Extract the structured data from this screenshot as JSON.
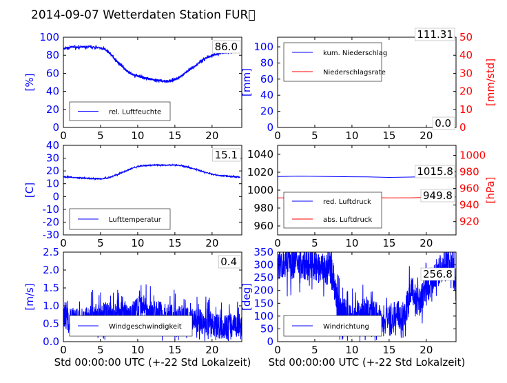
{
  "figure": {
    "title": "2014-09-07 Wetterdaten Station FUR\u0000",
    "xlabel": "Std 00:00:00 UTC (+-22 Std Lokalzeit)"
  },
  "chart_data": [
    {
      "type": "line",
      "xlim": [
        0,
        24
      ],
      "ylim": [
        0,
        100
      ],
      "ylabel": "[%]",
      "y_tick_color": "#0000ff",
      "xticks": [
        0,
        5,
        10,
        15,
        20
      ],
      "yticks": [
        0,
        20,
        40,
        60,
        80,
        100
      ],
      "grid": false,
      "legend": "lower-left",
      "last_value": "86.0",
      "series": [
        {
          "name": "rel. Luftfeuchte",
          "color": "#0000ff",
          "axis": "left",
          "noise": 1.2,
          "x": [
            0,
            0.5,
            1,
            2,
            3,
            4,
            5,
            5.5,
            6,
            6.5,
            7,
            7.5,
            8,
            8.5,
            9,
            9.5,
            10,
            10.5,
            11,
            11.5,
            12,
            12.5,
            13,
            13.5,
            14,
            14.5,
            15,
            15.5,
            16,
            16.5,
            17,
            17.5,
            18,
            18.5,
            19,
            19.5,
            20,
            21,
            22,
            23,
            23.8
          ],
          "y": [
            87,
            88,
            89,
            89,
            89,
            89,
            88,
            87,
            84,
            80,
            75,
            71,
            67,
            63,
            60,
            58,
            57,
            56,
            55,
            54,
            53,
            52,
            52,
            51,
            51,
            52,
            53,
            55,
            58,
            61,
            64,
            67,
            70,
            73,
            76,
            78,
            80,
            82,
            83,
            85,
            86
          ]
        }
      ]
    },
    {
      "type": "line",
      "xlim": [
        0,
        24
      ],
      "ylim": [
        0,
        112
      ],
      "ylabel": "[mm]",
      "y_tick_color": "#0000ff",
      "y2lim": [
        0,
        50
      ],
      "y2label": "[mm/std]",
      "y2_tick_color": "#ff0000",
      "xticks": [
        0,
        5,
        10,
        15,
        20
      ],
      "yticks": [
        0,
        20,
        40,
        60,
        80,
        100
      ],
      "y2ticks": [
        0,
        10,
        20,
        30,
        40,
        50
      ],
      "grid": false,
      "legend": "upper-left",
      "value_top": "111.31",
      "value_bottom": "0.0",
      "series": [
        {
          "name": "kum. Niederschlag",
          "color": "#0000ff",
          "axis": "left",
          "x": [
            0,
            24
          ],
          "y": [
            0,
            0
          ]
        },
        {
          "name": "Niederschlagsrate",
          "color": "#ff0000",
          "axis": "right",
          "x": [
            0,
            24
          ],
          "y": [
            0,
            0
          ]
        }
      ]
    },
    {
      "type": "line",
      "xlim": [
        0,
        24
      ],
      "ylim": [
        -30,
        40
      ],
      "ylabel": "[C]",
      "y_tick_color": "#0000ff",
      "xticks": [
        0,
        5,
        10,
        15,
        20
      ],
      "yticks": [
        -30,
        -20,
        -10,
        0,
        10,
        20,
        30,
        40
      ],
      "grid": false,
      "legend": "lower-left",
      "last_value": "15.1",
      "series": [
        {
          "name": "Lufttemperatur",
          "color": "#0000ff",
          "axis": "left",
          "noise": 0.4,
          "x": [
            0,
            1,
            2,
            3,
            4,
            5,
            6,
            7,
            8,
            9,
            10,
            11,
            12,
            13,
            14,
            15,
            16,
            17,
            18,
            19,
            20,
            21,
            22,
            23,
            23.8
          ],
          "y": [
            15.5,
            15,
            14.6,
            14.3,
            14,
            13.8,
            14.5,
            16.5,
            19,
            21.5,
            23.5,
            24.3,
            24.6,
            24.5,
            24.5,
            24.7,
            24,
            22.5,
            21,
            19,
            17.5,
            16.4,
            16,
            15.5,
            15.1
          ]
        }
      ]
    },
    {
      "type": "line",
      "xlim": [
        0,
        24
      ],
      "ylim": [
        950,
        1050
      ],
      "ylabel": "",
      "y_tick_color": "#000000",
      "y2lim": [
        904,
        1012
      ],
      "y2label": "[hPa]",
      "y2_tick_color": "#ff0000",
      "xticks": [
        0,
        5,
        10,
        15,
        20
      ],
      "yticks": [
        960,
        980,
        1000,
        1020,
        1040
      ],
      "y2ticks": [
        920,
        940,
        960,
        980,
        1000
      ],
      "grid": false,
      "legend": "lower-left",
      "value_top": "1015.8",
      "value_bottom": "949.8",
      "series": [
        {
          "name": "red. Luftdruck",
          "color": "#0000ff",
          "axis": "left",
          "x": [
            0,
            3,
            6,
            9,
            12,
            15,
            18,
            21,
            24
          ],
          "y": [
            1015.2,
            1015.6,
            1015.3,
            1015.0,
            1014.8,
            1014.2,
            1014.6,
            1015.4,
            1015.8
          ]
        },
        {
          "name": "abs. Luftdruck",
          "color": "#ff0000",
          "axis": "right",
          "x": [
            0,
            3,
            6,
            9,
            12,
            15,
            18,
            21,
            24
          ],
          "y": [
            948.6,
            948.8,
            949.0,
            949.2,
            949.0,
            948.6,
            948.8,
            949.4,
            949.8
          ]
        }
      ]
    },
    {
      "type": "line",
      "xlim": [
        0,
        24
      ],
      "ylim": [
        0,
        2.5
      ],
      "ylabel": "[m/s]",
      "y_tick_color": "#0000ff",
      "xticks": [
        0,
        5,
        10,
        15,
        20
      ],
      "yticks": [
        0.0,
        0.5,
        1.0,
        1.5,
        2.0,
        2.5
      ],
      "ytick_decimals": 1,
      "grid": false,
      "legend": "lower-left",
      "last_value": "0.4",
      "series": [
        {
          "name": "Windgeschwindigkeit",
          "color": "#0000ff",
          "axis": "left",
          "noise": 0.35,
          "x": [
            0,
            1,
            2,
            3,
            4,
            5,
            6,
            7,
            8,
            9,
            10,
            11,
            12,
            13,
            14,
            15,
            16,
            17,
            18,
            19,
            20,
            21,
            22,
            23,
            24
          ],
          "y": [
            0.7,
            0.6,
            0.6,
            0.6,
            0.7,
            0.7,
            0.8,
            0.7,
            0.8,
            0.8,
            0.9,
            0.9,
            0.8,
            0.8,
            0.7,
            0.7,
            0.7,
            0.6,
            0.6,
            0.5,
            0.5,
            0.4,
            0.4,
            0.5,
            0.4
          ]
        }
      ]
    },
    {
      "type": "line",
      "xlim": [
        0,
        24
      ],
      "ylim": [
        0,
        350
      ],
      "ylabel": "[deg]",
      "y_tick_color": "#0000ff",
      "xticks": [
        0,
        5,
        10,
        15,
        20
      ],
      "yticks": [
        0,
        50,
        100,
        150,
        200,
        250,
        300,
        350
      ],
      "grid": false,
      "legend": "lower-left",
      "last_value": "256.8",
      "series": [
        {
          "name": "Windrichtung",
          "color": "#0000ff",
          "axis": "left",
          "noise": 60,
          "x": [
            0,
            1,
            2,
            3,
            4,
            5,
            6,
            7,
            7.5,
            8,
            8.5,
            9,
            10,
            11,
            12,
            13,
            14,
            15,
            16,
            17,
            18,
            19,
            20,
            21,
            22,
            23,
            24
          ],
          "y": [
            300,
            305,
            305,
            300,
            300,
            290,
            285,
            280,
            250,
            150,
            120,
            110,
            100,
            100,
            120,
            100,
            90,
            80,
            100,
            100,
            200,
            150,
            200,
            250,
            290,
            300,
            257
          ]
        }
      ]
    }
  ]
}
